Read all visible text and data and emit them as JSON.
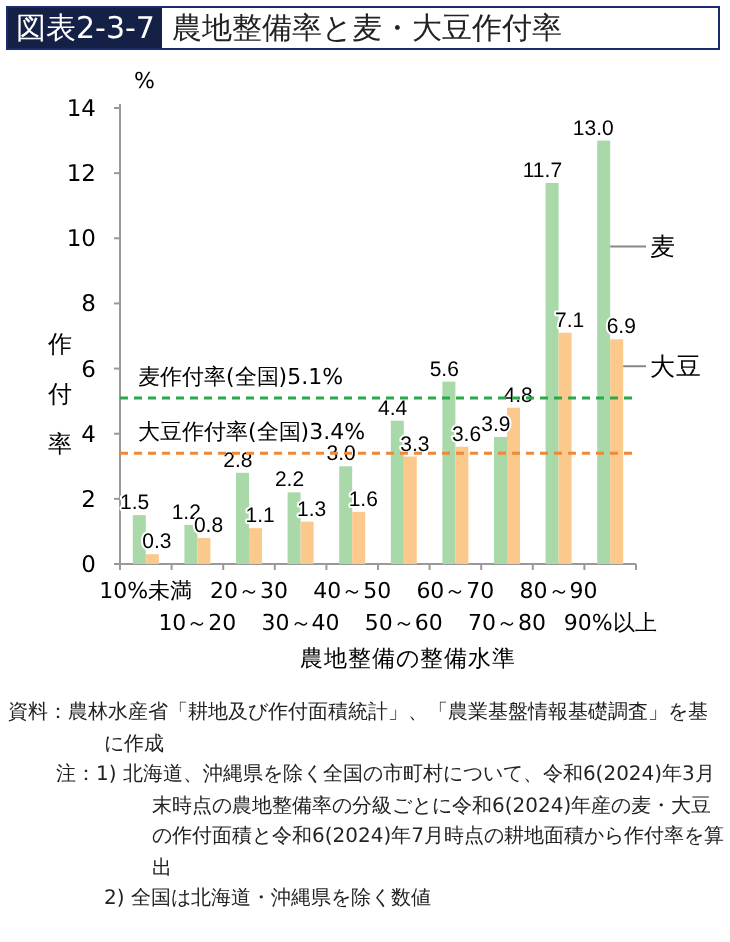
{
  "chart_data": {
    "type": "bar",
    "title": "図表2-3-7 農地整備率と麦・大豆作付率",
    "xlabel": "農地整備の整備水準",
    "ylabel": "作付率",
    "categories": [
      "10%未満",
      "10～20",
      "20～30",
      "30～40",
      "40～50",
      "50～60",
      "60～70",
      "70～80",
      "80～90",
      "90%以上"
    ],
    "series": [
      {
        "name": "麦",
        "color": "#a9d9a9",
        "values": [
          1.5,
          1.2,
          2.8,
          2.2,
          3.0,
          4.4,
          5.6,
          3.9,
          11.7,
          13.0
        ],
        "value_labels": [
          "1.5",
          "1.2",
          "2.8",
          "2.2",
          "3.0",
          "4.4",
          "5.6",
          "3.9",
          "11.7",
          "13.0"
        ]
      },
      {
        "name": "大豆",
        "color": "#fcc98c",
        "values": [
          0.3,
          0.8,
          1.1,
          1.3,
          1.6,
          3.3,
          3.6,
          4.8,
          7.1,
          6.9
        ],
        "value_labels": [
          "0.3",
          "0.8",
          "1.1",
          "1.3",
          "1.6",
          "3.3",
          "3.6",
          "4.8",
          "7.1",
          "6.9"
        ]
      }
    ],
    "ylim": [
      0,
      14
    ],
    "yticks": [
      0,
      2,
      4,
      6,
      8,
      10,
      12,
      14
    ],
    "legend": "right",
    "ref_lines": [
      {
        "axis": "y",
        "value": 5.1,
        "label": "麦作付率(全国)5.1%",
        "color": "#2aa84a",
        "line_style": "dashed"
      },
      {
        "axis": "y",
        "value": 3.4,
        "label": "大豆作付率(全国)3.4%",
        "color": "#f0883a",
        "line_style": "dashed"
      }
    ],
    "annotations": [
      "%",
      "資料：農林水産省「耕地及び作付面積統計」、「農業基盤情報基礎調査」を基に作成",
      "注：1) 北海道、沖縄県を除く全国の市町村について、令和6(2024)年3月末時点の農地整備率の分級ごとに令和6(2024)年産の麦・大豆の作付面積と令和6(2024)年7月時点の耕地面積から作付率を算出",
      "2) 全国は北海道・沖縄県を除く数値"
    ]
  }
}
